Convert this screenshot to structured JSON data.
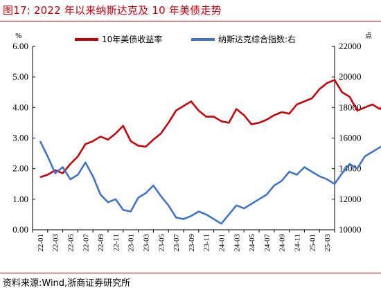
{
  "header": {
    "title": "图17:  2022 年以来纳斯达克及 10 年美债走势"
  },
  "footer": {
    "source": "资料来源:Wind,浙商证券研究所"
  },
  "chart_data": {
    "type": "line",
    "x_tick_labels": [
      "22-01",
      "22-03",
      "22-05",
      "22-07",
      "22-09",
      "22-11",
      "23-01",
      "23-03",
      "23-05",
      "23-07",
      "23-09",
      "23-11",
      "24-01",
      "24-03",
      "24-05",
      "24-07",
      "24-09",
      "24-11",
      "25-01",
      "25-03"
    ],
    "y_left": {
      "unit": "%",
      "ylim": [
        0,
        6
      ],
      "tick_labels": [
        "0.00",
        "1.00",
        "2.00",
        "3.00",
        "4.00",
        "5.00",
        "6.00"
      ]
    },
    "y_right": {
      "unit": "点",
      "ylim": [
        10000,
        22000
      ],
      "tick_labels": [
        "10000",
        "12000",
        "14000",
        "16000",
        "18000",
        "20000",
        "22000"
      ]
    },
    "legend_position": "top",
    "grid": false,
    "series": [
      {
        "name": "10年美债收益率",
        "axis": "left",
        "color": "#c0000b",
        "points": [
          [
            0,
            1.72
          ],
          [
            0.5,
            1.8
          ],
          [
            1.0,
            1.95
          ],
          [
            1.5,
            1.85
          ],
          [
            2.0,
            2.15
          ],
          [
            2.5,
            2.4
          ],
          [
            3.0,
            2.8
          ],
          [
            3.5,
            2.9
          ],
          [
            4.0,
            3.05
          ],
          [
            4.5,
            2.95
          ],
          [
            5.0,
            3.15
          ],
          [
            5.5,
            3.4
          ],
          [
            6.0,
            2.9
          ],
          [
            6.5,
            2.75
          ],
          [
            7.0,
            2.72
          ],
          [
            7.5,
            2.95
          ],
          [
            8.0,
            3.15
          ],
          [
            8.5,
            3.5
          ],
          [
            9.0,
            3.9
          ],
          [
            9.5,
            4.05
          ],
          [
            10.0,
            4.2
          ],
          [
            10.5,
            3.9
          ],
          [
            11.0,
            3.7
          ],
          [
            11.5,
            3.7
          ],
          [
            12.0,
            3.55
          ],
          [
            12.5,
            3.5
          ],
          [
            13.0,
            3.95
          ],
          [
            13.5,
            3.75
          ],
          [
            14.0,
            3.45
          ],
          [
            14.5,
            3.5
          ],
          [
            15.0,
            3.6
          ],
          [
            15.5,
            3.75
          ],
          [
            16.0,
            3.85
          ],
          [
            16.5,
            3.8
          ],
          [
            17.0,
            4.1
          ],
          [
            17.5,
            4.2
          ],
          [
            18.0,
            4.3
          ],
          [
            18.5,
            4.6
          ],
          [
            19.0,
            4.8
          ],
          [
            19.5,
            4.9
          ],
          [
            20.0,
            4.5
          ],
          [
            20.5,
            4.35
          ],
          [
            21.0,
            3.9
          ],
          [
            21.5,
            4.0
          ],
          [
            22.0,
            4.1
          ],
          [
            22.5,
            3.95
          ],
          [
            23.0,
            4.2
          ],
          [
            23.5,
            4.3
          ],
          [
            24.0,
            4.5
          ],
          [
            24.5,
            4.6
          ],
          [
            25.0,
            4.4
          ],
          [
            25.5,
            4.35
          ],
          [
            26.0,
            4.2
          ],
          [
            26.5,
            4.3
          ],
          [
            27.0,
            4.05
          ],
          [
            27.5,
            3.75
          ],
          [
            28.0,
            3.65
          ],
          [
            28.5,
            3.8
          ],
          [
            29.0,
            4.2
          ],
          [
            29.5,
            4.4
          ],
          [
            30.0,
            4.55
          ],
          [
            30.5,
            4.35
          ],
          [
            31.0,
            4.65
          ],
          [
            31.5,
            4.5
          ],
          [
            32.0,
            4.45
          ],
          [
            32.5,
            4.6
          ],
          [
            33.0,
            4.55
          ],
          [
            33.5,
            4.35
          ],
          [
            34.0,
            4.25
          ],
          [
            34.5,
            4.2
          ]
        ]
      },
      {
        "name": "纳斯达克综合指数:右",
        "axis": "right",
        "color": "#4472c4",
        "points": [
          [
            0,
            15800
          ],
          [
            0.5,
            14800
          ],
          [
            1.0,
            13700
          ],
          [
            1.5,
            14100
          ],
          [
            2.0,
            13300
          ],
          [
            2.5,
            13600
          ],
          [
            3.0,
            14400
          ],
          [
            3.5,
            13500
          ],
          [
            4.0,
            12300
          ],
          [
            4.5,
            11800
          ],
          [
            5.0,
            12000
          ],
          [
            5.5,
            11300
          ],
          [
            6.0,
            11200
          ],
          [
            6.5,
            12100
          ],
          [
            7.0,
            12400
          ],
          [
            7.5,
            12900
          ],
          [
            8.0,
            12200
          ],
          [
            8.5,
            11600
          ],
          [
            9.0,
            10800
          ],
          [
            9.5,
            10700
          ],
          [
            10.0,
            10900
          ],
          [
            10.5,
            11200
          ],
          [
            11.0,
            11000
          ],
          [
            11.5,
            10700
          ],
          [
            12.0,
            10400
          ],
          [
            12.5,
            11000
          ],
          [
            13.0,
            11600
          ],
          [
            13.5,
            11400
          ],
          [
            14.0,
            11700
          ],
          [
            14.5,
            12000
          ],
          [
            15.0,
            12300
          ],
          [
            15.5,
            12900
          ],
          [
            16.0,
            13200
          ],
          [
            16.5,
            13800
          ],
          [
            17.0,
            13600
          ],
          [
            17.5,
            14100
          ],
          [
            18.0,
            13800
          ],
          [
            18.5,
            13500
          ],
          [
            19.0,
            13300
          ],
          [
            19.5,
            13000
          ],
          [
            20.0,
            13700
          ],
          [
            20.5,
            14300
          ],
          [
            21.0,
            14000
          ],
          [
            21.5,
            14800
          ],
          [
            22.0,
            15100
          ],
          [
            22.5,
            15400
          ],
          [
            23.0,
            15700
          ],
          [
            23.5,
            15900
          ],
          [
            24.0,
            16200
          ],
          [
            24.5,
            16400
          ],
          [
            25.0,
            16000
          ],
          [
            25.5,
            16700
          ],
          [
            26.0,
            17400
          ],
          [
            26.5,
            17700
          ],
          [
            27.0,
            17200
          ],
          [
            27.5,
            17900
          ],
          [
            28.0,
            16800
          ],
          [
            28.5,
            17800
          ],
          [
            29.0,
            18200
          ],
          [
            29.5,
            18400
          ],
          [
            30.0,
            18800
          ],
          [
            30.5,
            19500
          ],
          [
            31.0,
            19700
          ],
          [
            31.5,
            19400
          ],
          [
            32.0,
            19600
          ],
          [
            32.5,
            19900
          ],
          [
            33.0,
            19400
          ],
          [
            33.5,
            18300
          ],
          [
            34.0,
            17800
          ],
          [
            34.5,
            17500
          ]
        ]
      }
    ]
  }
}
